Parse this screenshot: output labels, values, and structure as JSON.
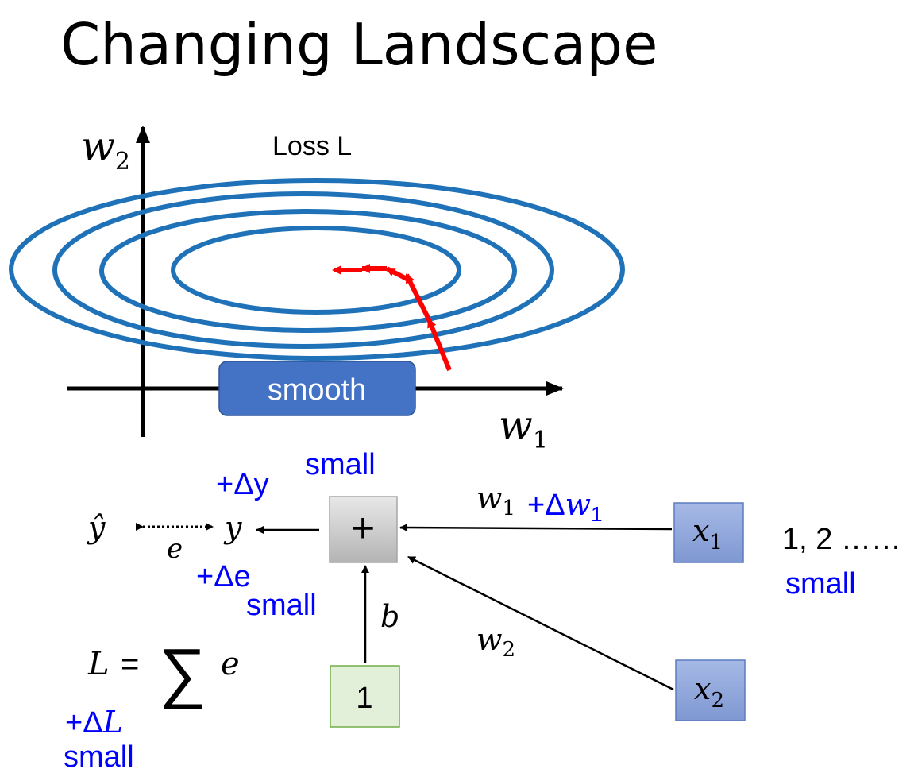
{
  "title": "Changing Landscape",
  "loss_plot": {
    "label": "Loss L",
    "y_axis": "w",
    "y_axis_sub": "2",
    "x_axis": "w",
    "x_axis_sub": "1",
    "region_label": "smooth",
    "contour_color": "#1f72b8",
    "path_color": "#ff0000",
    "region_color": "#4472c4"
  },
  "network": {
    "y_hat": "ŷ",
    "y": "y",
    "error": "e",
    "delta_y": "+Δy",
    "delta_y_note": "small",
    "delta_e": "+Δe",
    "delta_e_note": "small",
    "sum_node": "+",
    "bias_input": "1",
    "bias_weight": "b",
    "w1": "w",
    "w1_sub": "1",
    "delta_w1": "+Δ",
    "delta_w1_var": "w",
    "delta_w1_sub": "1",
    "w2": "w",
    "w2_sub": "2",
    "x1": "x",
    "x1_sub": "1",
    "x2": "x",
    "x2_sub": "2",
    "x1_values": "1, 2 ……",
    "x1_note": "small",
    "loss_lhs": "L",
    "loss_eq": "=",
    "loss_sum": "∑",
    "loss_rhs": "e",
    "delta_L": "+Δ",
    "delta_L_var": "L",
    "delta_L_note": "small",
    "accent_color": "#0000ff"
  }
}
